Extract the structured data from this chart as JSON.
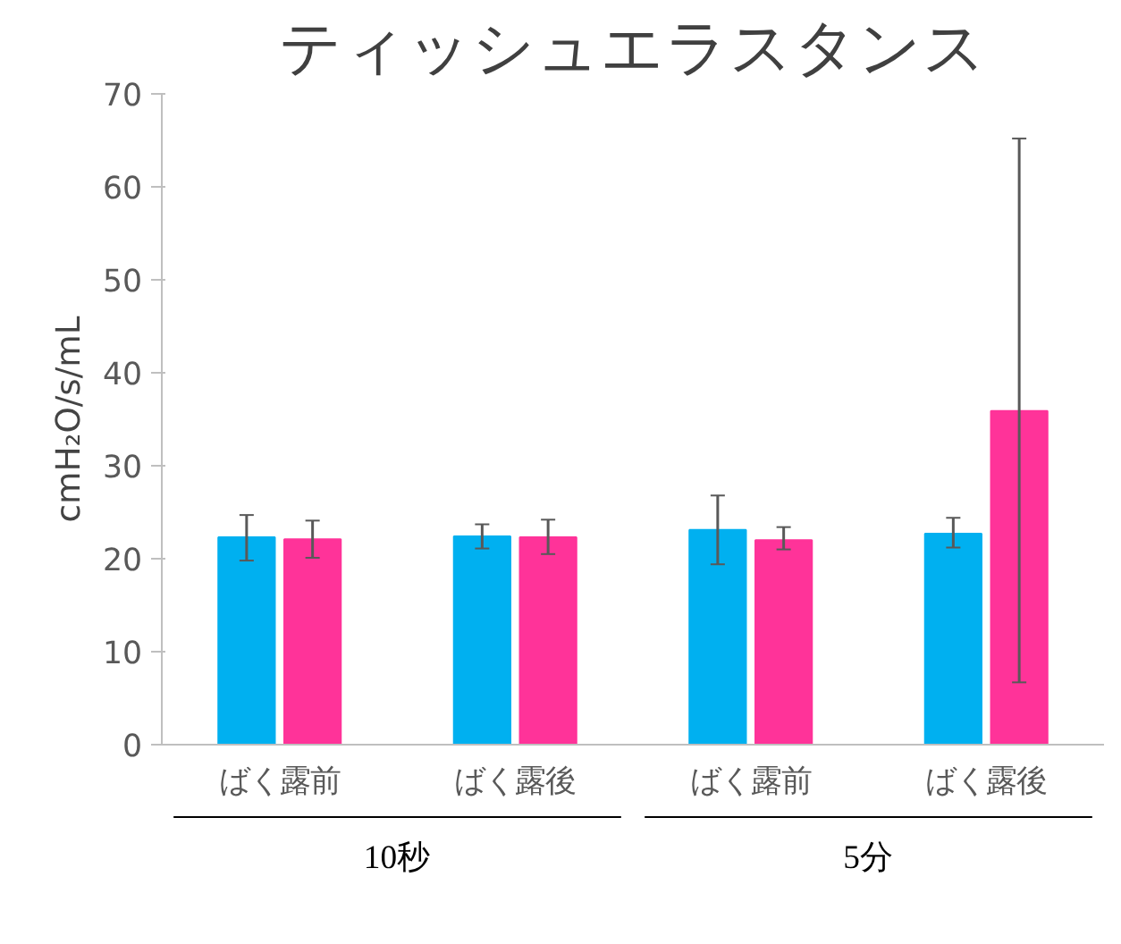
{
  "chart_data": {
    "type": "bar",
    "title": "ティッシュエラスタンス",
    "ylabel": "cmH₂O/s/mL",
    "categories": [
      "ばく露前",
      "ばく露後",
      "ばく露前",
      "ばく露後"
    ],
    "series": [
      {
        "color": "#00b0f0",
        "values": [
          22.3,
          22.4,
          23.1,
          22.7
        ],
        "errors": [
          [
            19.8,
            24.7
          ],
          [
            21.1,
            23.7
          ],
          [
            19.4,
            26.8
          ],
          [
            21.2,
            24.4
          ]
        ]
      },
      {
        "color": "#ff3399",
        "values": [
          22.1,
          22.3,
          22.0,
          35.9
        ],
        "errors": [
          [
            20.1,
            24.1
          ],
          [
            20.5,
            24.2
          ],
          [
            21.0,
            23.4
          ],
          [
            6.7,
            65.2
          ]
        ]
      }
    ],
    "annotations": [
      "10秒",
      "5分"
    ],
    "ylim": [
      0,
      70
    ],
    "yticks": [
      0,
      10,
      20,
      30,
      40,
      50,
      60,
      70
    ],
    "grid": false
  }
}
